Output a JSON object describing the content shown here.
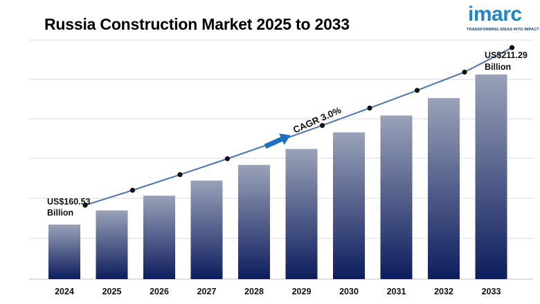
{
  "header": {
    "title": "Russia Construction Market 2025 to 2033"
  },
  "logo": {
    "word": "imarc",
    "tagline": "TRANSFORMING IDEAS INTO IMPACT"
  },
  "colors": {
    "bar_top": "#9aa2b8",
    "bar_bottom": "#0d1d5e",
    "line": "#4a74b4",
    "marker": "#111111",
    "arrow": "#1b6fc2",
    "grid": "#d9d9d9"
  },
  "chart_data": {
    "type": "bar",
    "categories": [
      "2024",
      "2025",
      "2026",
      "2027",
      "2028",
      "2029",
      "2030",
      "2031",
      "2032",
      "2033"
    ],
    "values": [
      160.53,
      165.3,
      170.3,
      175.4,
      180.7,
      186.1,
      191.7,
      197.4,
      203.3,
      211.29
    ],
    "ylim": [
      0,
      230
    ],
    "grid": true,
    "annotations": {
      "start_value": "US$160.53",
      "start_unit": "Billion",
      "end_value": "US$211.29",
      "end_unit": "Billion",
      "cagr": "CAGR 3.0%"
    }
  }
}
